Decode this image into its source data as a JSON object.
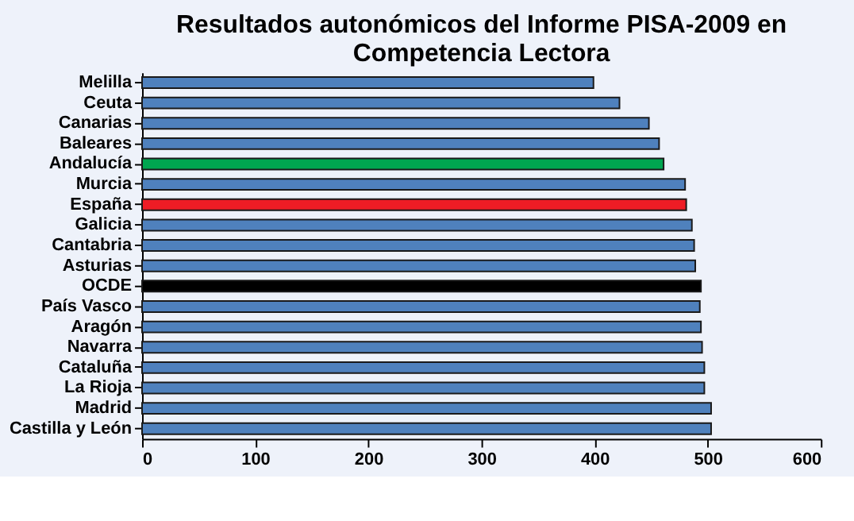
{
  "chart_data": {
    "type": "bar",
    "orientation": "horizontal",
    "title": [
      "Resultados autonómicos del Informe PISA-2009 en",
      "Competencia Lectora"
    ],
    "categories": [
      "Melilla",
      "Ceuta",
      "Canarias",
      "Baleares",
      "Andalucía",
      "Murcia",
      "España",
      "Galicia",
      "Cantabria",
      "Asturias",
      "OCDE",
      "País Vasco",
      "Aragón",
      "Navarra",
      "Cataluña",
      "La Rioja",
      "Madrid",
      "Castilla y León"
    ],
    "values": [
      399,
      422,
      448,
      457,
      461,
      480,
      481,
      486,
      488,
      489,
      494,
      493,
      494,
      495,
      497,
      497,
      503,
      503
    ],
    "colors": [
      "#4f81bd",
      "#4f81bd",
      "#4f81bd",
      "#4f81bd",
      "#00a650",
      "#4f81bd",
      "#ee1c25",
      "#4f81bd",
      "#4f81bd",
      "#4f81bd",
      "#000000",
      "#4f81bd",
      "#4f81bd",
      "#4f81bd",
      "#4f81bd",
      "#4f81bd",
      "#4f81bd",
      "#4f81bd"
    ],
    "xlim": [
      0,
      600
    ],
    "xticks": [
      0,
      100,
      200,
      300,
      400,
      500,
      600
    ],
    "grid": false
  }
}
